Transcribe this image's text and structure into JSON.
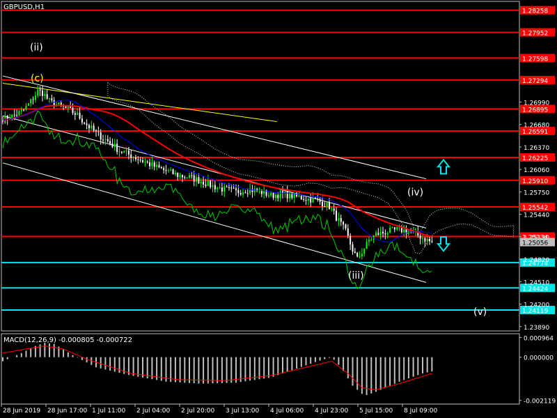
{
  "window": {
    "symbol_label": "GBPUSD,H1",
    "indicator_label": "MACD(12,26,9) -0.000805 -0.000722"
  },
  "colors": {
    "background": "#000000",
    "grid": "#c0c0c0",
    "candle_up": "#00ff00",
    "candle_down": "#ffffff",
    "resistance": "#ff0000",
    "support": "#00e5e5",
    "ma_slow": "#ff0000",
    "ma_fast": "#0000ff",
    "oscillator": "#00cc00",
    "upper_trend": "#ffff00",
    "channel": "#ffffff",
    "cloud": "#ffffff",
    "wave_label": "#ffffff",
    "wave_label_c": "#ffff00",
    "arrow": "#00e5e5",
    "macd_hist": "#c0c0c0",
    "macd_signal": "#ff0000"
  },
  "chart_data": {
    "type": "candlestick",
    "symbol": "GBPUSD",
    "timeframe": "H1",
    "x_labels": [
      "28 Jun 2019",
      "28 Jun 17:00",
      "1 Jul 11:00",
      "2 Jul 04:00",
      "2 Jul 20:00",
      "3 Jul 13:00",
      "4 Jul 06:00",
      "4 Jul 23:00",
      "5 Jul 15:00",
      "8 Jul 09:00"
    ],
    "y_ticks": [
      "1.26990",
      "1.26680",
      "1.26370",
      "1.26060",
      "1.25750",
      "1.25440",
      "1.25130",
      "1.24820",
      "1.24510",
      "1.24200",
      "1.23890"
    ],
    "ylim": [
      1.2383,
      1.2838
    ],
    "current_price": "1.25056",
    "close_path": [
      [
        0,
        1.2675
      ],
      [
        3,
        1.2678
      ],
      [
        6,
        1.2682
      ],
      [
        9,
        1.2688
      ],
      [
        12,
        1.27
      ],
      [
        15,
        1.2714
      ],
      [
        17,
        1.2712
      ],
      [
        20,
        1.27
      ],
      [
        24,
        1.2694
      ],
      [
        28,
        1.2689
      ],
      [
        32,
        1.2681
      ],
      [
        36,
        1.2668
      ],
      [
        40,
        1.2656
      ],
      [
        45,
        1.2645
      ],
      [
        50,
        1.2632
      ],
      [
        55,
        1.2625
      ],
      [
        60,
        1.2618
      ],
      [
        65,
        1.261
      ],
      [
        70,
        1.2604
      ],
      [
        75,
        1.2598
      ],
      [
        80,
        1.2595
      ],
      [
        85,
        1.259
      ],
      [
        90,
        1.2583
      ],
      [
        95,
        1.2578
      ],
      [
        100,
        1.2575
      ],
      [
        105,
        1.2578
      ],
      [
        110,
        1.2576
      ],
      [
        115,
        1.257
      ],
      [
        120,
        1.2572
      ],
      [
        125,
        1.2569
      ],
      [
        130,
        1.2566
      ],
      [
        135,
        1.2563
      ],
      [
        140,
        1.2555
      ],
      [
        143,
        1.254
      ],
      [
        147,
        1.252
      ],
      [
        150,
        1.2495
      ],
      [
        152,
        1.2482
      ],
      [
        154,
        1.2492
      ],
      [
        157,
        1.2508
      ],
      [
        160,
        1.2516
      ],
      [
        165,
        1.252
      ],
      [
        170,
        1.2523
      ],
      [
        175,
        1.252
      ],
      [
        178,
        1.2515
      ],
      [
        181,
        1.251
      ],
      [
        184,
        1.2505
      ]
    ],
    "resistance_levels": [
      "1.28258",
      "1.27952",
      "1.27598",
      "1.27294",
      "1.26895",
      "1.26591",
      "1.26225",
      "1.25910",
      "1.25542",
      "1.25134"
    ],
    "support_levels": [
      "1.24774",
      "1.24424",
      "1.24119"
    ],
    "wave_labels": [
      {
        "text": "(ii)",
        "price": 1.2775
      },
      {
        "text": "(c)",
        "price": 1.2732
      },
      {
        "text": "(iv)",
        "price": 1.2575
      },
      {
        "text": "(iii)",
        "price": 1.246
      },
      {
        "text": "(v)",
        "price": 1.241
      }
    ],
    "macd": {
      "y_ticks": [
        "0.000964",
        "0.000000",
        "-0.002119"
      ],
      "ylim": [
        -0.0023,
        0.00115
      ],
      "histogram_path": [
        [
          0,
          -0.0002
        ],
        [
          8,
          0.0002
        ],
        [
          14,
          0.00055
        ],
        [
          18,
          0.0007
        ],
        [
          22,
          0.00065
        ],
        [
          30,
          0.0001
        ],
        [
          40,
          -0.0005
        ],
        [
          55,
          -0.0009
        ],
        [
          70,
          -0.0012
        ],
        [
          85,
          -0.0013
        ],
        [
          100,
          -0.00125
        ],
        [
          115,
          -0.001
        ],
        [
          125,
          -0.0006
        ],
        [
          135,
          -0.0002
        ],
        [
          141,
          0.0
        ],
        [
          145,
          -0.0005
        ],
        [
          150,
          -0.0014
        ],
        [
          155,
          -0.0019
        ],
        [
          160,
          -0.0017
        ],
        [
          170,
          -0.0012
        ],
        [
          180,
          -0.0008
        ],
        [
          184,
          -0.0007
        ]
      ],
      "signal_path": [
        [
          0,
          0.0002
        ],
        [
          10,
          0.0004
        ],
        [
          18,
          0.00055
        ],
        [
          26,
          0.0004
        ],
        [
          36,
          -0.0001
        ],
        [
          55,
          -0.0008
        ],
        [
          75,
          -0.0011
        ],
        [
          95,
          -0.00115
        ],
        [
          115,
          -0.0009
        ],
        [
          130,
          -0.0005
        ],
        [
          141,
          -0.0002
        ],
        [
          148,
          -0.0008
        ],
        [
          154,
          -0.0015
        ],
        [
          160,
          -0.0016
        ],
        [
          170,
          -0.0013
        ],
        [
          184,
          -0.0008
        ]
      ]
    }
  }
}
